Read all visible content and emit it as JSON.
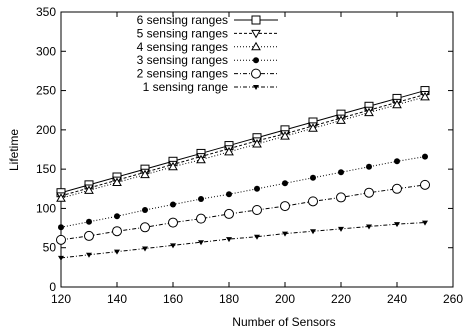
{
  "chart_data": {
    "type": "line",
    "title": "",
    "xlabel": "Number of Sensors",
    "ylabel": "Lifetime",
    "xlim": [
      120,
      260
    ],
    "ylim": [
      0,
      350
    ],
    "x_ticks": [
      120,
      140,
      160,
      180,
      200,
      220,
      240,
      260
    ],
    "y_ticks": [
      0,
      50,
      100,
      150,
      200,
      250,
      300,
      350
    ],
    "grid": false,
    "legend_position": "top-left",
    "x": [
      120,
      130,
      140,
      150,
      160,
      170,
      180,
      190,
      200,
      210,
      220,
      230,
      240,
      250
    ],
    "series": [
      {
        "name": "6 sensing ranges",
        "marker": "square",
        "dash": "solid",
        "values": [
          120,
          130,
          140,
          150,
          160,
          170,
          180,
          190,
          200,
          210,
          220,
          230,
          240,
          250
        ]
      },
      {
        "name": "5 sensing ranges",
        "marker": "triangle-down",
        "dash": "dashed",
        "values": [
          116,
          126,
          136,
          146,
          156,
          166,
          176,
          186,
          195,
          205,
          215,
          225,
          235,
          245
        ]
      },
      {
        "name": "4 sensing ranges",
        "marker": "triangle-up",
        "dash": "dotted",
        "values": [
          113,
          123,
          133,
          143,
          153,
          162,
          172,
          182,
          192,
          202,
          212,
          222,
          232,
          242
        ]
      },
      {
        "name": "3 sensing ranges",
        "marker": "filled-circle",
        "dash": "dotted",
        "values": [
          76,
          83,
          90,
          98,
          105,
          112,
          118,
          125,
          132,
          139,
          146,
          153,
          160,
          166
        ]
      },
      {
        "name": "2 sensing ranges",
        "marker": "open-circle",
        "dash": "dashdot",
        "values": [
          60,
          65,
          71,
          76,
          82,
          87,
          93,
          98,
          103,
          109,
          114,
          120,
          125,
          130
        ]
      },
      {
        "name": "1 sensing range",
        "marker": "filled-triangle-down",
        "dash": "dashdot",
        "values": [
          37,
          41,
          45,
          49,
          53,
          57,
          61,
          64,
          68,
          71,
          74,
          77,
          80,
          82
        ]
      }
    ]
  }
}
